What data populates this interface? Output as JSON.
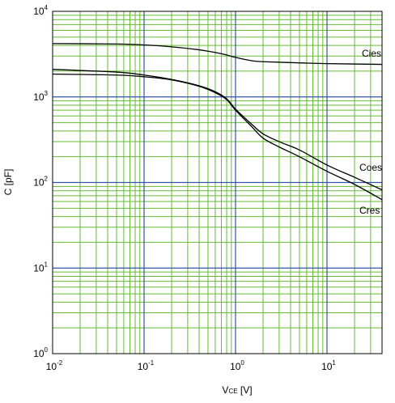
{
  "chart_data": {
    "type": "line",
    "xlabel": {
      "main": "V",
      "sub": "CE",
      "unit": " [V]"
    },
    "ylabel": "C [pF]",
    "x_scale": "log",
    "y_scale": "log",
    "xlim": [
      0.01,
      40
    ],
    "ylim": [
      1,
      10000
    ],
    "x_ticks": [
      {
        "value": 0.01,
        "base": "10",
        "exp": "-2"
      },
      {
        "value": 0.1,
        "base": "10",
        "exp": "-1"
      },
      {
        "value": 1,
        "base": "10",
        "exp": "0"
      },
      {
        "value": 10,
        "base": "10",
        "exp": "1"
      }
    ],
    "y_ticks": [
      {
        "value": 1,
        "base": "10",
        "exp": "0"
      },
      {
        "value": 10,
        "base": "10",
        "exp": "1"
      },
      {
        "value": 100,
        "base": "10",
        "exp": "2"
      },
      {
        "value": 1000,
        "base": "10",
        "exp": "3"
      },
      {
        "value": 10000,
        "base": "10",
        "exp": "4"
      }
    ],
    "grid": {
      "major": true,
      "minor": true
    },
    "colors": {
      "major_grid": "#3355aa",
      "minor_grid": "#66bb33",
      "series": "#000000"
    },
    "series": [
      {
        "name": "Cies",
        "points": [
          [
            0.01,
            4200
          ],
          [
            0.05,
            4150
          ],
          [
            0.1,
            4050
          ],
          [
            0.2,
            3850
          ],
          [
            0.4,
            3550
          ],
          [
            0.7,
            3200
          ],
          [
            1,
            2900
          ],
          [
            1.5,
            2650
          ],
          [
            2,
            2580
          ],
          [
            5,
            2500
          ],
          [
            10,
            2450
          ],
          [
            40,
            2400
          ]
        ]
      },
      {
        "name": "Coes",
        "points": [
          [
            0.01,
            2100
          ],
          [
            0.05,
            1950
          ],
          [
            0.1,
            1800
          ],
          [
            0.2,
            1600
          ],
          [
            0.4,
            1350
          ],
          [
            0.6,
            1150
          ],
          [
            0.8,
            950
          ],
          [
            1,
            720
          ],
          [
            1.5,
            480
          ],
          [
            2,
            370
          ],
          [
            3,
            300
          ],
          [
            5,
            240
          ],
          [
            10,
            160
          ],
          [
            20,
            115
          ],
          [
            40,
            82
          ]
        ]
      },
      {
        "name": "Cres",
        "points": [
          [
            0.01,
            1850
          ],
          [
            0.05,
            1800
          ],
          [
            0.1,
            1720
          ],
          [
            0.2,
            1580
          ],
          [
            0.4,
            1330
          ],
          [
            0.6,
            1120
          ],
          [
            0.8,
            930
          ],
          [
            1,
            700
          ],
          [
            1.5,
            450
          ],
          [
            2,
            330
          ],
          [
            3,
            260
          ],
          [
            5,
            200
          ],
          [
            10,
            135
          ],
          [
            20,
            95
          ],
          [
            40,
            63
          ]
        ]
      }
    ],
    "annotations": [
      {
        "text": "Cies",
        "series": "Cies"
      },
      {
        "text": "Coes",
        "series": "Coes"
      },
      {
        "text": "Cres",
        "series": "Cres"
      }
    ]
  }
}
